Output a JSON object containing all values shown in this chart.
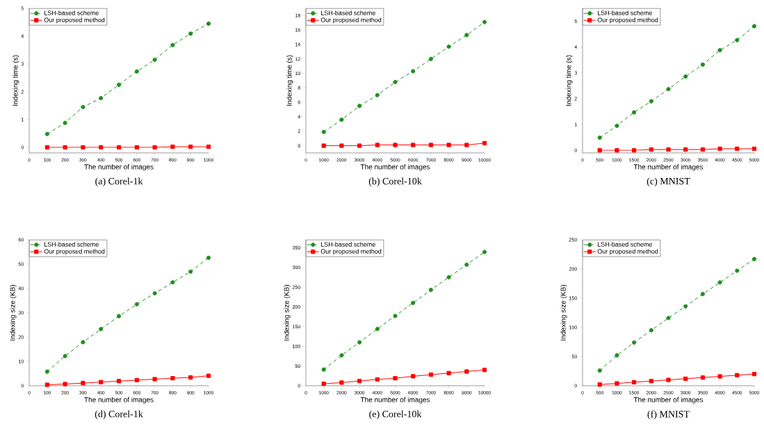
{
  "chart_data": [
    {
      "type": "line",
      "title": "(a)  Corel-1k",
      "xlabel": "The number of images",
      "ylabel": "Indexing time (s)",
      "x": [
        100,
        200,
        300,
        400,
        500,
        600,
        700,
        800,
        900,
        1000
      ],
      "xlim": [
        0,
        1000
      ],
      "xticks": [
        0,
        100,
        200,
        300,
        400,
        500,
        600,
        700,
        800,
        900,
        1000
      ],
      "ylim": [
        -0.2,
        5
      ],
      "yticks": [
        0,
        1,
        2,
        3,
        4,
        5
      ],
      "legend": "top left",
      "series": [
        {
          "name": "LSH-based scheme",
          "color": "#1f8f1f",
          "marker": "circle",
          "line_style": "dashed",
          "values": [
            0.48,
            0.88,
            1.45,
            1.77,
            2.25,
            2.73,
            3.15,
            3.68,
            4.09,
            4.45
          ]
        },
        {
          "name": "Our proposed method",
          "color": "#ff0000",
          "marker": "square",
          "line_style": "solid",
          "values": [
            0,
            0,
            0,
            0,
            0,
            0,
            0,
            0.02,
            0.02,
            0.02
          ]
        }
      ]
    },
    {
      "type": "line",
      "title": "(b)  Corel-10k",
      "xlabel": "The number of images",
      "ylabel": "Indexing time (s)",
      "x": [
        1000,
        2000,
        3000,
        4000,
        5000,
        6000,
        7000,
        8000,
        9000,
        10000
      ],
      "xlim": [
        0,
        10000
      ],
      "xticks": [
        0,
        1000,
        2000,
        3000,
        4000,
        5000,
        6000,
        7000,
        8000,
        9000,
        10000
      ],
      "ylim": [
        -1,
        19
      ],
      "yticks": [
        0,
        2,
        4,
        6,
        8,
        10,
        12,
        14,
        16,
        18
      ],
      "legend": "top left",
      "series": [
        {
          "name": "LSH-based scheme",
          "color": "#1f8f1f",
          "marker": "circle",
          "line_style": "dashed",
          "values": [
            1.9,
            3.6,
            5.5,
            7.0,
            8.8,
            10.3,
            12.0,
            13.7,
            15.3,
            17.1
          ]
        },
        {
          "name": "Our proposed method",
          "color": "#ff0000",
          "marker": "square",
          "line_style": "solid",
          "values": [
            0,
            0,
            0,
            0.1,
            0.1,
            0.1,
            0.1,
            0.1,
            0.1,
            0.35
          ]
        }
      ]
    },
    {
      "type": "line",
      "title": "(c)  MNIST",
      "xlabel": "The number of images",
      "ylabel": "Indexing time (s)",
      "x": [
        500,
        1000,
        1500,
        2000,
        2500,
        3000,
        3500,
        4000,
        4500,
        5000
      ],
      "xlim": [
        0,
        5000
      ],
      "xticks": [
        0,
        500,
        1000,
        1500,
        2000,
        2500,
        3000,
        3500,
        4000,
        4500,
        5000
      ],
      "ylim": [
        -0.1,
        5.5
      ],
      "yticks": [
        0,
        1,
        2,
        3,
        4,
        5
      ],
      "legend": "top left",
      "series": [
        {
          "name": "LSH-based scheme",
          "color": "#1f8f1f",
          "marker": "circle",
          "line_style": "dashed",
          "values": [
            0.49,
            0.95,
            1.47,
            1.9,
            2.37,
            2.86,
            3.32,
            3.88,
            4.27,
            4.81
          ]
        },
        {
          "name": "Our proposed method",
          "color": "#ff0000",
          "marker": "square",
          "line_style": "solid",
          "values": [
            0,
            0,
            0,
            0.03,
            0.03,
            0.03,
            0.03,
            0.06,
            0.06,
            0.06
          ]
        }
      ]
    },
    {
      "type": "line",
      "title": "(d)  Corel-1k",
      "xlabel": "The number of images",
      "ylabel": "Indexing size (KB)",
      "x": [
        100,
        200,
        300,
        400,
        500,
        600,
        700,
        800,
        900,
        1000
      ],
      "xlim": [
        0,
        1000
      ],
      "xticks": [
        0,
        100,
        200,
        300,
        400,
        500,
        600,
        700,
        800,
        900,
        1000
      ],
      "ylim": [
        0,
        60
      ],
      "yticks": [
        0,
        10,
        20,
        30,
        40,
        50,
        60
      ],
      "legend": "top left",
      "series": [
        {
          "name": "LSH-based scheme",
          "color": "#1f8f1f",
          "marker": "circle",
          "line_style": "dashed",
          "values": [
            5.8,
            12.2,
            17.9,
            23.3,
            28.6,
            33.5,
            38.0,
            42.5,
            46.9,
            52.6
          ]
        },
        {
          "name": "Our proposed method",
          "color": "#ff0000",
          "marker": "square",
          "line_style": "solid",
          "values": [
            0.4,
            0.7,
            1.1,
            1.5,
            1.9,
            2.3,
            2.7,
            3.1,
            3.4,
            4.1
          ]
        }
      ]
    },
    {
      "type": "line",
      "title": "(e)  Corel-10k",
      "xlabel": "The number of images",
      "ylabel": "Indexing size (KB)",
      "x": [
        1000,
        2000,
        3000,
        4000,
        5000,
        6000,
        7000,
        8000,
        9000,
        10000
      ],
      "xlim": [
        0,
        10000
      ],
      "xticks": [
        0,
        1000,
        2000,
        3000,
        4000,
        5000,
        6000,
        7000,
        8000,
        9000,
        10000
      ],
      "ylim": [
        0,
        370
      ],
      "yticks": [
        0,
        50,
        100,
        150,
        200,
        250,
        300,
        350
      ],
      "legend": "top left",
      "series": [
        {
          "name": "LSH-based scheme",
          "color": "#1f8f1f",
          "marker": "circle",
          "line_style": "dashed",
          "values": [
            41,
            77,
            110,
            144,
            177,
            210,
            243,
            275,
            307,
            339
          ]
        },
        {
          "name": "Our proposed method",
          "color": "#ff0000",
          "marker": "square",
          "line_style": "solid",
          "values": [
            5,
            8,
            12,
            16,
            19,
            24,
            28,
            32,
            36,
            40
          ]
        }
      ]
    },
    {
      "type": "line",
      "title": "(f)  MNIST",
      "xlabel": "The number of images",
      "ylabel": "Indexing size (KB)",
      "x": [
        500,
        1000,
        1500,
        2000,
        2500,
        3000,
        3500,
        4000,
        4500,
        5000
      ],
      "xlim": [
        0,
        5000
      ],
      "xticks": [
        0,
        500,
        1000,
        1500,
        2000,
        2500,
        3000,
        3500,
        4000,
        4500,
        5000
      ],
      "ylim": [
        0,
        250
      ],
      "yticks": [
        0,
        50,
        100,
        150,
        200,
        250
      ],
      "legend": "top left",
      "series": [
        {
          "name": "LSH-based scheme",
          "color": "#1f8f1f",
          "marker": "circle",
          "line_style": "dashed",
          "values": [
            26,
            52,
            74,
            95,
            116,
            136,
            157,
            177,
            197,
            217
          ]
        },
        {
          "name": "Our proposed method",
          "color": "#ff0000",
          "marker": "square",
          "line_style": "solid",
          "values": [
            2,
            4,
            6,
            8,
            10,
            12,
            14,
            16,
            18,
            20
          ]
        }
      ]
    }
  ]
}
